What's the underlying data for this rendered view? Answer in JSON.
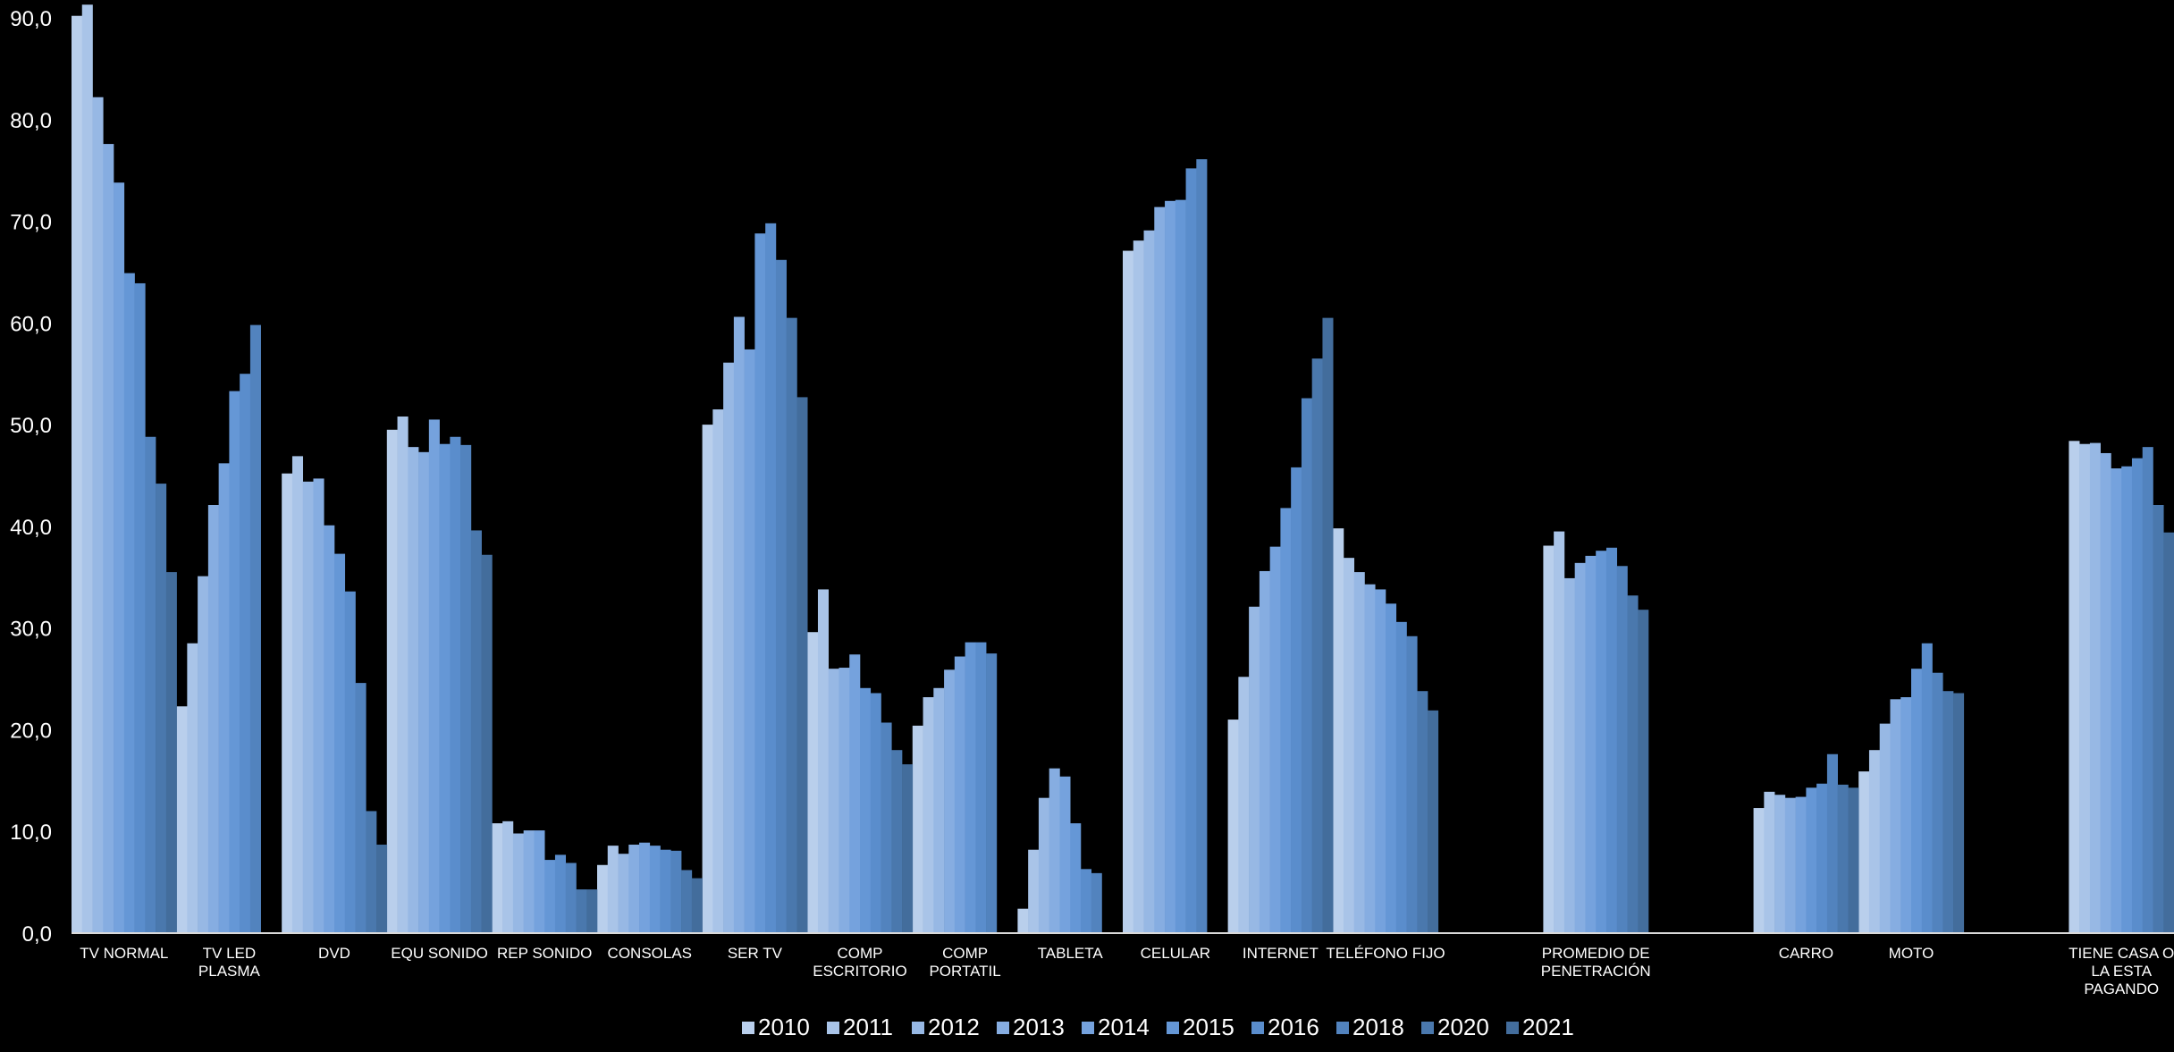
{
  "chart_data": {
    "type": "bar",
    "title": "",
    "xlabel": "",
    "ylabel": "",
    "ylim": [
      0,
      92
    ],
    "yticks": [
      "0,0",
      "10,0",
      "20,0",
      "30,0",
      "40,0",
      "50,0",
      "60,0",
      "70,0",
      "80,0",
      "90,0"
    ],
    "ytick_values": [
      0,
      10,
      20,
      30,
      40,
      50,
      60,
      70,
      80,
      90
    ],
    "grid": false,
    "legend_position": "bottom",
    "categories": [
      [
        "TV NORMAL"
      ],
      [
        "TV LED",
        "PLASMA"
      ],
      [
        "DVD"
      ],
      [
        "EQU SONIDO"
      ],
      [
        "REP SONIDO"
      ],
      [
        "CONSOLAS"
      ],
      [
        "SER TV"
      ],
      [
        "COMP",
        "ESCRITORIO"
      ],
      [
        "COMP",
        "PORTATIL"
      ],
      [
        "TABLETA"
      ],
      [
        "CELULAR"
      ],
      [
        "INTERNET"
      ],
      [
        "TELÉFONO FIJO"
      ],
      [],
      [
        "PROMEDIO DE",
        "PENETRACIÓN"
      ],
      [],
      [
        "CARRO"
      ],
      [
        "MOTO"
      ],
      [],
      [
        "TIENE CASA O",
        "LA ESTA",
        "PAGANDO"
      ]
    ],
    "series": [
      {
        "name": "2010",
        "color": "#b9cfec",
        "values": [
          90.2,
          22.3,
          45.2,
          49.5,
          10.8,
          6.7,
          50.0,
          29.6,
          20.4,
          2.4,
          67.1,
          21.0,
          39.8,
          null,
          38.1,
          null,
          12.3,
          15.9,
          null,
          48.4
        ]
      },
      {
        "name": "2011",
        "color": "#a9c4e8",
        "values": [
          91.3,
          28.5,
          46.9,
          50.8,
          11.0,
          8.6,
          51.5,
          33.8,
          23.2,
          8.2,
          68.1,
          25.2,
          36.9,
          null,
          39.5,
          null,
          13.9,
          18.0,
          null,
          48.1
        ]
      },
      {
        "name": "2012",
        "color": "#97b8e4",
        "values": [
          82.2,
          35.1,
          44.4,
          47.8,
          9.8,
          7.8,
          56.1,
          26.0,
          24.1,
          13.3,
          69.1,
          32.1,
          35.5,
          null,
          34.9,
          null,
          13.6,
          20.6,
          null,
          48.2
        ]
      },
      {
        "name": "2013",
        "color": "#86ade1",
        "values": [
          77.6,
          42.1,
          44.7,
          47.3,
          10.1,
          8.7,
          60.6,
          26.1,
          25.9,
          16.2,
          71.4,
          35.6,
          34.3,
          null,
          36.4,
          null,
          13.3,
          23.0,
          null,
          47.2
        ]
      },
      {
        "name": "2014",
        "color": "#75a2dd",
        "values": [
          73.8,
          46.2,
          40.1,
          50.5,
          10.1,
          8.9,
          57.4,
          27.4,
          27.2,
          15.4,
          72.0,
          38.0,
          33.8,
          null,
          37.1,
          null,
          13.4,
          23.2,
          null,
          45.7
        ]
      },
      {
        "name": "2015",
        "color": "#6597d6",
        "values": [
          64.9,
          53.3,
          37.3,
          48.1,
          7.2,
          8.6,
          68.8,
          24.1,
          28.6,
          10.8,
          72.1,
          41.8,
          32.4,
          null,
          37.6,
          null,
          14.3,
          26.0,
          null,
          45.9
        ]
      },
      {
        "name": "2016",
        "color": "#5a8dcc",
        "values": [
          63.9,
          55.0,
          33.6,
          48.8,
          7.7,
          8.2,
          69.8,
          23.6,
          28.6,
          6.3,
          75.2,
          45.8,
          30.6,
          null,
          37.9,
          null,
          14.7,
          28.5,
          null,
          46.7
        ]
      },
      {
        "name": "2018",
        "color": "#5283be",
        "values": [
          48.8,
          59.8,
          24.6,
          48.0,
          6.9,
          8.1,
          66.2,
          20.7,
          27.5,
          5.9,
          76.1,
          52.6,
          29.2,
          null,
          36.1,
          null,
          17.6,
          25.6,
          null,
          47.8
        ]
      },
      {
        "name": "2020",
        "color": "#4a78ad",
        "values": [
          44.2,
          null,
          12.0,
          39.6,
          4.3,
          6.2,
          60.5,
          18.0,
          null,
          null,
          null,
          56.5,
          23.8,
          null,
          33.2,
          null,
          14.6,
          23.8,
          null,
          42.1
        ]
      },
      {
        "name": "2021",
        "color": "#436d9c",
        "values": [
          35.5,
          null,
          8.7,
          37.2,
          4.3,
          5.4,
          52.7,
          16.6,
          null,
          null,
          null,
          60.5,
          21.9,
          null,
          31.8,
          null,
          14.3,
          23.6,
          null,
          39.4
        ]
      }
    ]
  }
}
